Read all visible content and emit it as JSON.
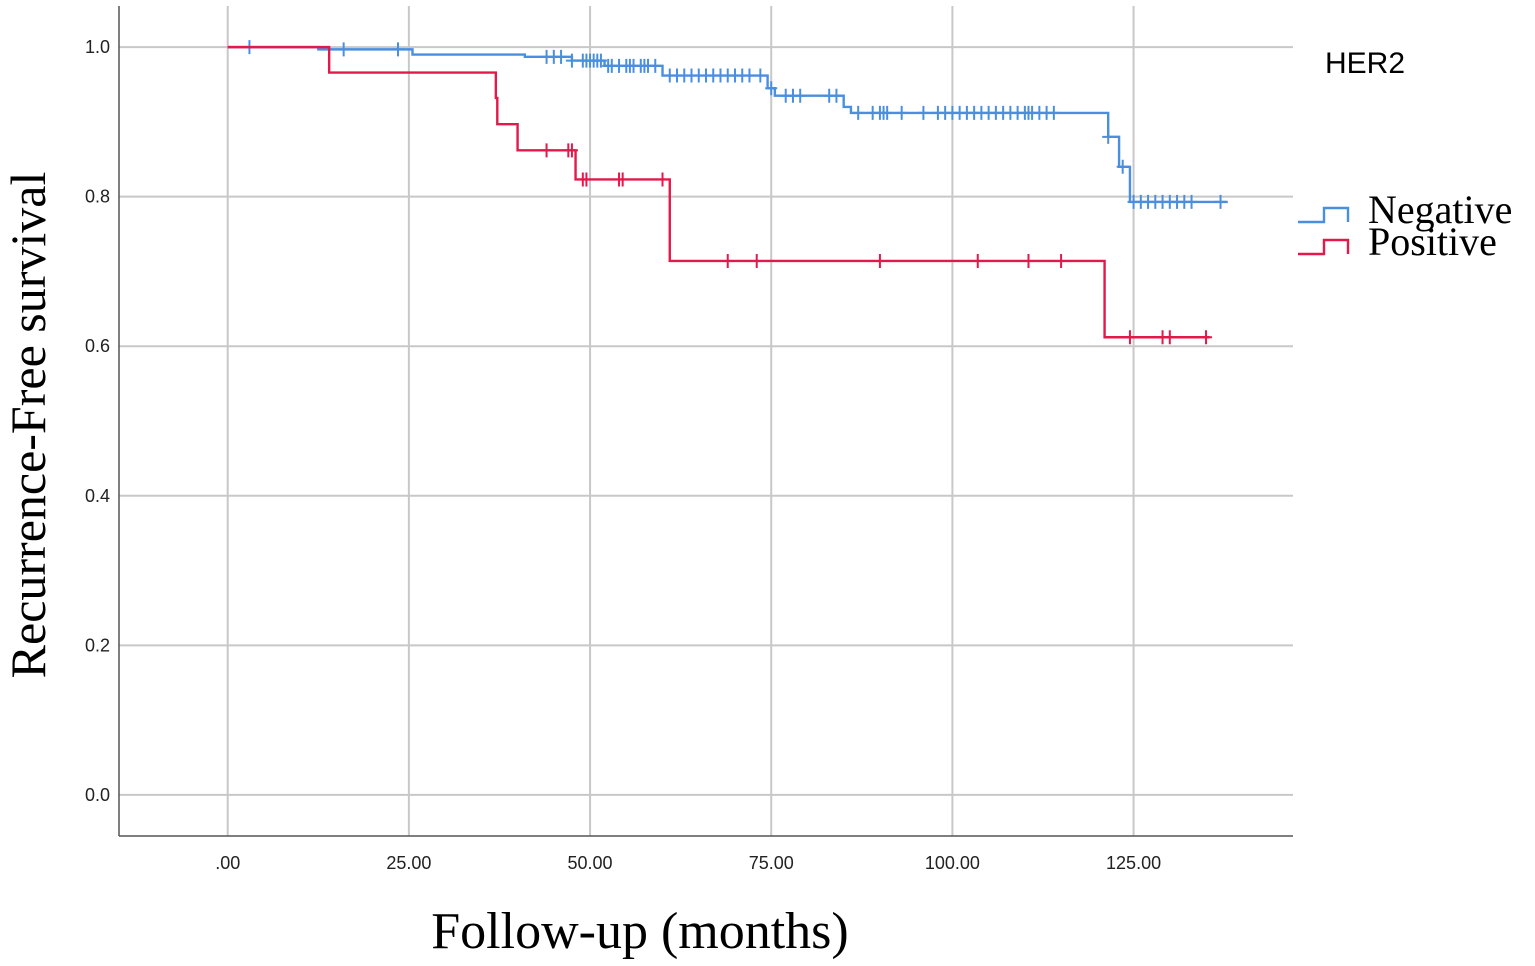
{
  "chart_data": {
    "type": "line",
    "subtype": "kaplan-meier",
    "xlabel": "Follow-up (months)",
    "ylabel": "Recurrence-Free survival",
    "xlim": [
      -15,
      147
    ],
    "ylim": [
      -0.055,
      1.055
    ],
    "x_ticks": [
      0,
      25,
      50,
      75,
      100,
      125
    ],
    "x_tick_labels": [
      ".00",
      "25.00",
      "50.00",
      "75.00",
      "100.00",
      "125.00"
    ],
    "y_ticks": [
      0,
      0.2,
      0.4,
      0.6,
      0.8,
      1.0
    ],
    "y_tick_labels": [
      "0.0",
      "0.2",
      "0.4",
      "0.6",
      "0.8",
      "1.0"
    ],
    "grid": true,
    "legend": {
      "title": "HER2",
      "position": "right",
      "entries": [
        {
          "label": "Negative",
          "color": "#4a8fdf"
        },
        {
          "label": "Positive",
          "color": "#e3194b"
        }
      ]
    },
    "series": [
      {
        "name": "Negative",
        "color": "#4a8fdf",
        "steps": [
          [
            0,
            1.0
          ],
          [
            12.5,
            0.997
          ],
          [
            25.5,
            0.99
          ],
          [
            41,
            0.987
          ],
          [
            47.5,
            0.982
          ],
          [
            52,
            0.975
          ],
          [
            60,
            0.962
          ],
          [
            74.5,
            0.945
          ],
          [
            75.5,
            0.935
          ],
          [
            85,
            0.92
          ],
          [
            86,
            0.912
          ],
          [
            121.5,
            0.88
          ],
          [
            123,
            0.84
          ],
          [
            124.5,
            0.793
          ],
          [
            138,
            0.793
          ]
        ],
        "censored": [
          3,
          16,
          23.5,
          44,
          45,
          46,
          47.5,
          49,
          49.5,
          50,
          50.5,
          51,
          51.5,
          52.5,
          53,
          54,
          55,
          55.5,
          56,
          57,
          57.5,
          58,
          59,
          61,
          62,
          63,
          64,
          65,
          66,
          67,
          68,
          69,
          70,
          71,
          72,
          73.5,
          75,
          77,
          78,
          79,
          83,
          84,
          87,
          89,
          90,
          90.5,
          91,
          93,
          96,
          98,
          99,
          100,
          101,
          102,
          103,
          104,
          105,
          106,
          107,
          108,
          109,
          110,
          110.5,
          111,
          112,
          113,
          114,
          121.5,
          123.5,
          125,
          126,
          127,
          128,
          129,
          130,
          131,
          132,
          133,
          137
        ]
      },
      {
        "name": "Positive",
        "color": "#e3194b",
        "steps": [
          [
            0,
            1.0
          ],
          [
            14,
            0.966
          ],
          [
            37,
            0.932
          ],
          [
            37.2,
            0.897
          ],
          [
            40,
            0.862
          ],
          [
            48,
            0.823
          ],
          [
            61,
            0.714
          ],
          [
            121,
            0.612
          ],
          [
            135.5,
            0.612
          ]
        ],
        "censored": [
          44,
          47,
          47.5,
          49,
          49.5,
          54,
          54.5,
          60,
          69,
          73,
          90,
          103.5,
          110.5,
          115,
          124.5,
          129,
          130,
          135
        ]
      }
    ]
  }
}
